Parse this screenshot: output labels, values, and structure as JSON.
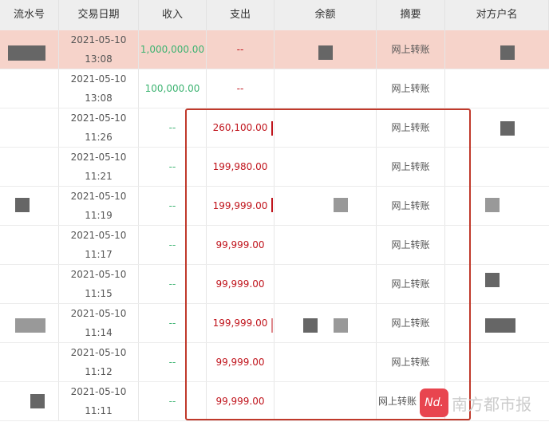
{
  "headers": [
    "流水号",
    "交易日期",
    "收入",
    "支出",
    "余额",
    "摘要",
    "对方户名"
  ],
  "rows": [
    {
      "date": "2021-05-10",
      "time": "13:08",
      "income": "1,000,000.00",
      "expense": "--",
      "summary": "网上转账"
    },
    {
      "date": "2021-05-10",
      "time": "13:08",
      "income": "100,000.00",
      "expense": "--",
      "summary": "网上转账"
    },
    {
      "date": "2021-05-10",
      "time": "11:26",
      "income": "--",
      "expense": "260,100.00",
      "summary": "网上转账"
    },
    {
      "date": "2021-05-10",
      "time": "11:21",
      "income": "--",
      "expense": "199,980.00",
      "summary": "网上转账"
    },
    {
      "date": "2021-05-10",
      "time": "11:19",
      "income": "--",
      "expense": "199,999.00",
      "summary": "网上转账"
    },
    {
      "date": "2021-05-10",
      "time": "11:17",
      "income": "--",
      "expense": "99,999.00",
      "summary": "网上转账"
    },
    {
      "date": "2021-05-10",
      "time": "11:15",
      "income": "--",
      "expense": "99,999.00",
      "summary": "网上转账"
    },
    {
      "date": "2021-05-10",
      "time": "11:14",
      "income": "--",
      "expense": "199,999.00",
      "summary": "网上转账"
    },
    {
      "date": "2021-05-10",
      "time": "11:12",
      "income": "--",
      "expense": "99,999.00",
      "summary": "网上转账"
    },
    {
      "date": "2021-05-10",
      "time": "11:11",
      "income": "--",
      "expense": "99,999.00",
      "summary": "网上转账"
    }
  ],
  "watermark": {
    "logo": "Nd.",
    "text": "南方都市报"
  },
  "colors": {
    "highlight": "#f6d3ca",
    "income": "#3cb371",
    "expense": "#c0141c",
    "box": "#c0392b"
  }
}
